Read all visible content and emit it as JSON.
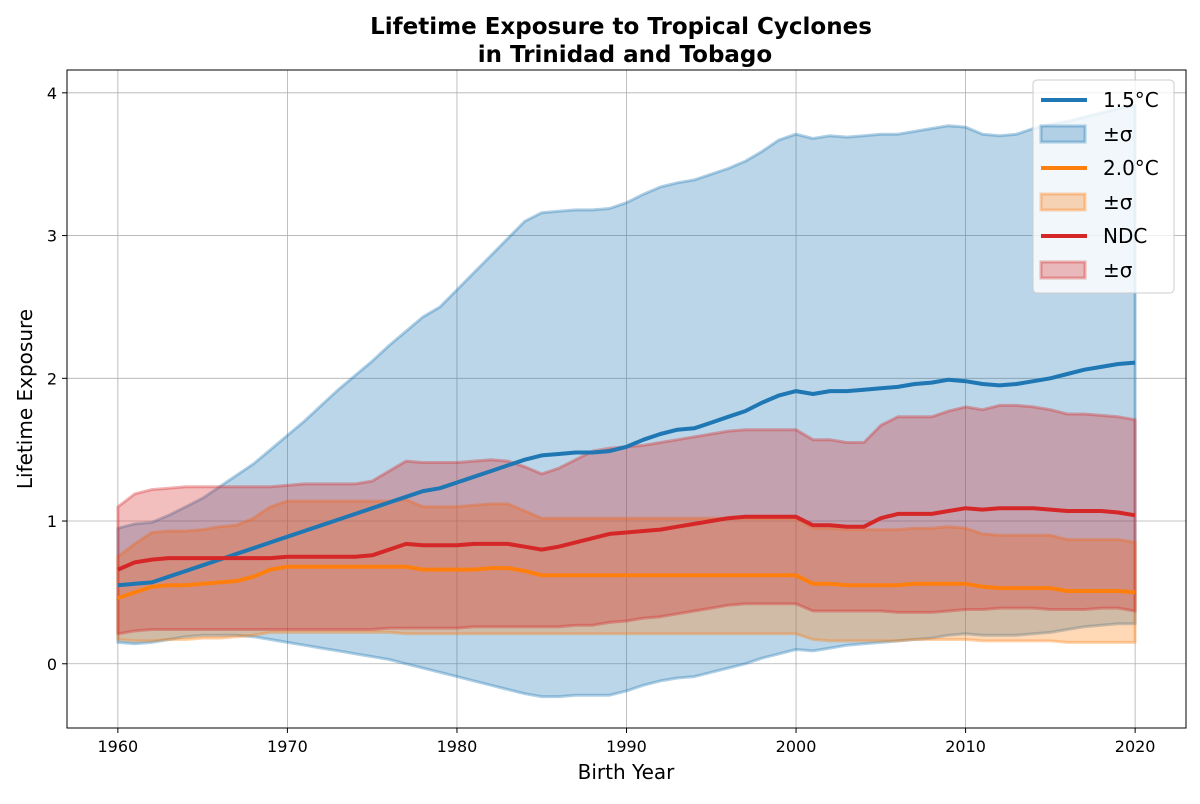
{
  "chart_data": {
    "type": "line",
    "title": [
      "Lifetime Exposure to Tropical Cyclones",
      "in Trinidad and Tobago"
    ],
    "xlabel": "Birth Year",
    "ylabel": "Lifetime Exposure",
    "xlim": [
      1957,
      2023
    ],
    "ylim": [
      -0.45,
      4.16
    ],
    "xticks": [
      "1960",
      "1970",
      "1980",
      "1990",
      "2000",
      "2010",
      "2020"
    ],
    "yticks": [
      "0",
      "1",
      "2",
      "3",
      "4"
    ],
    "grid": true,
    "legend_position": "top-right",
    "series": [
      {
        "name": "1.5°C",
        "band_label": "±σ",
        "color": "#1f77b4",
        "x": [
          1960,
          1961,
          1962,
          1963,
          1964,
          1965,
          1966,
          1967,
          1968,
          1969,
          1970,
          1971,
          1972,
          1973,
          1974,
          1975,
          1976,
          1977,
          1978,
          1979,
          1980,
          1981,
          1982,
          1983,
          1984,
          1985,
          1986,
          1987,
          1988,
          1989,
          1990,
          1991,
          1992,
          1993,
          1994,
          1995,
          1996,
          1997,
          1998,
          1999,
          2000,
          2001,
          2002,
          2003,
          2004,
          2005,
          2006,
          2007,
          2008,
          2009,
          2010,
          2011,
          2012,
          2013,
          2014,
          2015,
          2016,
          2017,
          2018,
          2019,
          2020
        ],
        "mean": [
          0.55,
          0.56,
          0.57,
          0.61,
          0.65,
          0.69,
          0.73,
          0.77,
          0.81,
          0.85,
          0.89,
          0.93,
          0.97,
          1.01,
          1.05,
          1.09,
          1.13,
          1.17,
          1.21,
          1.23,
          1.27,
          1.31,
          1.35,
          1.39,
          1.43,
          1.46,
          1.47,
          1.48,
          1.48,
          1.49,
          1.52,
          1.57,
          1.61,
          1.64,
          1.65,
          1.69,
          1.73,
          1.77,
          1.83,
          1.88,
          1.91,
          1.89,
          1.91,
          1.91,
          1.92,
          1.93,
          1.94,
          1.96,
          1.97,
          1.99,
          1.98,
          1.96,
          1.95,
          1.96,
          1.98,
          2.0,
          2.03,
          2.06,
          2.08,
          2.1,
          2.11
        ],
        "upper": [
          0.95,
          0.98,
          0.99,
          1.04,
          1.1,
          1.16,
          1.24,
          1.32,
          1.4,
          1.5,
          1.6,
          1.7,
          1.81,
          1.92,
          2.02,
          2.12,
          2.23,
          2.33,
          2.43,
          2.5,
          2.62,
          2.74,
          2.86,
          2.98,
          3.1,
          3.16,
          3.17,
          3.18,
          3.18,
          3.19,
          3.23,
          3.29,
          3.34,
          3.37,
          3.39,
          3.43,
          3.47,
          3.52,
          3.59,
          3.67,
          3.71,
          3.68,
          3.7,
          3.69,
          3.7,
          3.71,
          3.71,
          3.73,
          3.75,
          3.77,
          3.76,
          3.71,
          3.7,
          3.71,
          3.75,
          3.78,
          3.8,
          3.83,
          3.86,
          3.89,
          3.91
        ],
        "lower": [
          0.15,
          0.14,
          0.15,
          0.17,
          0.19,
          0.2,
          0.2,
          0.2,
          0.19,
          0.17,
          0.15,
          0.13,
          0.11,
          0.09,
          0.07,
          0.05,
          0.03,
          0.0,
          -0.03,
          -0.06,
          -0.09,
          -0.12,
          -0.15,
          -0.18,
          -0.21,
          -0.23,
          -0.23,
          -0.22,
          -0.22,
          -0.22,
          -0.19,
          -0.15,
          -0.12,
          -0.1,
          -0.09,
          -0.06,
          -0.03,
          0.0,
          0.04,
          0.07,
          0.1,
          0.09,
          0.11,
          0.13,
          0.14,
          0.15,
          0.16,
          0.17,
          0.18,
          0.2,
          0.21,
          0.2,
          0.2,
          0.2,
          0.21,
          0.22,
          0.24,
          0.26,
          0.27,
          0.28,
          0.28
        ]
      },
      {
        "name": "2.0°C",
        "band_label": "±σ",
        "color": "#ff7f0e",
        "x": [
          1960,
          1961,
          1962,
          1963,
          1964,
          1965,
          1966,
          1967,
          1968,
          1969,
          1970,
          1971,
          1972,
          1973,
          1974,
          1975,
          1976,
          1977,
          1978,
          1979,
          1980,
          1981,
          1982,
          1983,
          1984,
          1985,
          1986,
          1987,
          1988,
          1989,
          1990,
          1991,
          1992,
          1993,
          1994,
          1995,
          1996,
          1997,
          1998,
          1999,
          2000,
          2001,
          2002,
          2003,
          2004,
          2005,
          2006,
          2007,
          2008,
          2009,
          2010,
          2011,
          2012,
          2013,
          2014,
          2015,
          2016,
          2017,
          2018,
          2019,
          2020
        ],
        "mean": [
          0.46,
          0.5,
          0.54,
          0.55,
          0.55,
          0.56,
          0.57,
          0.58,
          0.61,
          0.66,
          0.68,
          0.68,
          0.68,
          0.68,
          0.68,
          0.68,
          0.68,
          0.68,
          0.66,
          0.66,
          0.66,
          0.66,
          0.67,
          0.67,
          0.65,
          0.62,
          0.62,
          0.62,
          0.62,
          0.62,
          0.62,
          0.62,
          0.62,
          0.62,
          0.62,
          0.62,
          0.62,
          0.62,
          0.62,
          0.62,
          0.62,
          0.56,
          0.56,
          0.55,
          0.55,
          0.55,
          0.55,
          0.56,
          0.56,
          0.56,
          0.56,
          0.54,
          0.53,
          0.53,
          0.53,
          0.53,
          0.51,
          0.51,
          0.51,
          0.51,
          0.5
        ],
        "upper": [
          0.75,
          0.84,
          0.92,
          0.93,
          0.93,
          0.94,
          0.96,
          0.97,
          1.02,
          1.1,
          1.14,
          1.14,
          1.14,
          1.14,
          1.14,
          1.14,
          1.14,
          1.15,
          1.1,
          1.1,
          1.1,
          1.11,
          1.12,
          1.12,
          1.07,
          1.02,
          1.02,
          1.02,
          1.02,
          1.02,
          1.02,
          1.02,
          1.02,
          1.02,
          1.02,
          1.02,
          1.02,
          1.02,
          1.02,
          1.02,
          1.02,
          0.95,
          0.95,
          0.94,
          0.94,
          0.94,
          0.94,
          0.95,
          0.95,
          0.96,
          0.95,
          0.91,
          0.9,
          0.9,
          0.9,
          0.9,
          0.87,
          0.87,
          0.87,
          0.87,
          0.85
        ],
        "lower": [
          0.17,
          0.16,
          0.16,
          0.17,
          0.17,
          0.18,
          0.18,
          0.19,
          0.2,
          0.22,
          0.22,
          0.22,
          0.22,
          0.22,
          0.22,
          0.22,
          0.22,
          0.21,
          0.21,
          0.21,
          0.21,
          0.21,
          0.21,
          0.21,
          0.21,
          0.21,
          0.21,
          0.21,
          0.21,
          0.21,
          0.21,
          0.21,
          0.21,
          0.21,
          0.21,
          0.21,
          0.21,
          0.21,
          0.21,
          0.21,
          0.21,
          0.17,
          0.16,
          0.16,
          0.16,
          0.16,
          0.16,
          0.17,
          0.17,
          0.17,
          0.17,
          0.16,
          0.16,
          0.16,
          0.16,
          0.16,
          0.15,
          0.15,
          0.15,
          0.15,
          0.15
        ]
      },
      {
        "name": "NDC",
        "band_label": "±σ",
        "color": "#d62728",
        "x": [
          1960,
          1961,
          1962,
          1963,
          1964,
          1965,
          1966,
          1967,
          1968,
          1969,
          1970,
          1971,
          1972,
          1973,
          1974,
          1975,
          1976,
          1977,
          1978,
          1979,
          1980,
          1981,
          1982,
          1983,
          1984,
          1985,
          1986,
          1987,
          1988,
          1989,
          1990,
          1991,
          1992,
          1993,
          1994,
          1995,
          1996,
          1997,
          1998,
          1999,
          2000,
          2001,
          2002,
          2003,
          2004,
          2005,
          2006,
          2007,
          2008,
          2009,
          2010,
          2011,
          2012,
          2013,
          2014,
          2015,
          2016,
          2017,
          2018,
          2019,
          2020
        ],
        "mean": [
          0.66,
          0.71,
          0.73,
          0.74,
          0.74,
          0.74,
          0.74,
          0.74,
          0.74,
          0.74,
          0.75,
          0.75,
          0.75,
          0.75,
          0.75,
          0.76,
          0.8,
          0.84,
          0.83,
          0.83,
          0.83,
          0.84,
          0.84,
          0.84,
          0.82,
          0.8,
          0.82,
          0.85,
          0.88,
          0.91,
          0.92,
          0.93,
          0.94,
          0.96,
          0.98,
          1.0,
          1.02,
          1.03,
          1.03,
          1.03,
          1.03,
          0.97,
          0.97,
          0.96,
          0.96,
          1.02,
          1.05,
          1.05,
          1.05,
          1.07,
          1.09,
          1.08,
          1.09,
          1.09,
          1.09,
          1.08,
          1.07,
          1.07,
          1.07,
          1.06,
          1.04
        ],
        "upper": [
          1.1,
          1.19,
          1.22,
          1.23,
          1.24,
          1.24,
          1.24,
          1.24,
          1.24,
          1.24,
          1.25,
          1.26,
          1.26,
          1.26,
          1.26,
          1.28,
          1.35,
          1.42,
          1.41,
          1.41,
          1.41,
          1.42,
          1.43,
          1.42,
          1.38,
          1.33,
          1.37,
          1.43,
          1.49,
          1.51,
          1.52,
          1.53,
          1.55,
          1.57,
          1.59,
          1.61,
          1.63,
          1.64,
          1.64,
          1.64,
          1.64,
          1.57,
          1.57,
          1.55,
          1.55,
          1.67,
          1.73,
          1.73,
          1.73,
          1.77,
          1.8,
          1.78,
          1.81,
          1.81,
          1.8,
          1.78,
          1.75,
          1.75,
          1.74,
          1.73,
          1.71
        ],
        "lower": [
          0.21,
          0.23,
          0.24,
          0.24,
          0.24,
          0.24,
          0.24,
          0.24,
          0.24,
          0.24,
          0.24,
          0.24,
          0.24,
          0.24,
          0.24,
          0.24,
          0.25,
          0.25,
          0.25,
          0.25,
          0.25,
          0.26,
          0.26,
          0.26,
          0.26,
          0.26,
          0.26,
          0.27,
          0.27,
          0.29,
          0.3,
          0.32,
          0.33,
          0.35,
          0.37,
          0.39,
          0.41,
          0.42,
          0.42,
          0.42,
          0.42,
          0.37,
          0.37,
          0.37,
          0.37,
          0.37,
          0.36,
          0.36,
          0.36,
          0.37,
          0.38,
          0.38,
          0.39,
          0.39,
          0.39,
          0.38,
          0.38,
          0.38,
          0.39,
          0.39,
          0.37
        ]
      }
    ]
  }
}
